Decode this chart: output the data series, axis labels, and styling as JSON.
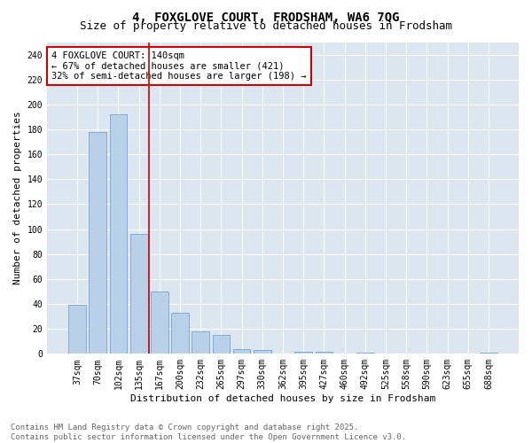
{
  "title_line1": "4, FOXGLOVE COURT, FRODSHAM, WA6 7QG",
  "title_line2": "Size of property relative to detached houses in Frodsham",
  "xlabel": "Distribution of detached houses by size in Frodsham",
  "ylabel": "Number of detached properties",
  "bar_labels": [
    "37sqm",
    "70sqm",
    "102sqm",
    "135sqm",
    "167sqm",
    "200sqm",
    "232sqm",
    "265sqm",
    "297sqm",
    "330sqm",
    "362sqm",
    "395sqm",
    "427sqm",
    "460sqm",
    "492sqm",
    "525sqm",
    "558sqm",
    "590sqm",
    "623sqm",
    "655sqm",
    "688sqm"
  ],
  "bar_values": [
    39,
    178,
    192,
    96,
    50,
    33,
    18,
    15,
    4,
    3,
    0,
    2,
    2,
    0,
    1,
    0,
    0,
    0,
    0,
    0,
    1
  ],
  "bar_color": "#b8d0e8",
  "bar_edge_color": "#6699cc",
  "vline_color": "#cc0000",
  "annotation_text": "4 FOXGLOVE COURT: 140sqm\n← 67% of detached houses are smaller (421)\n32% of semi-detached houses are larger (198) →",
  "annotation_box_facecolor": "#ffffff",
  "annotation_box_edgecolor": "#cc0000",
  "ylim": [
    0,
    250
  ],
  "yticks": [
    0,
    20,
    40,
    60,
    80,
    100,
    120,
    140,
    160,
    180,
    200,
    220,
    240
  ],
  "bg_color": "#dce6f0",
  "footer_text": "Contains HM Land Registry data © Crown copyright and database right 2025.\nContains public sector information licensed under the Open Government Licence v3.0.",
  "title_fontsize": 10,
  "subtitle_fontsize": 9,
  "axis_label_fontsize": 8,
  "tick_fontsize": 7,
  "annotation_fontsize": 7.5,
  "footer_fontsize": 6.5
}
